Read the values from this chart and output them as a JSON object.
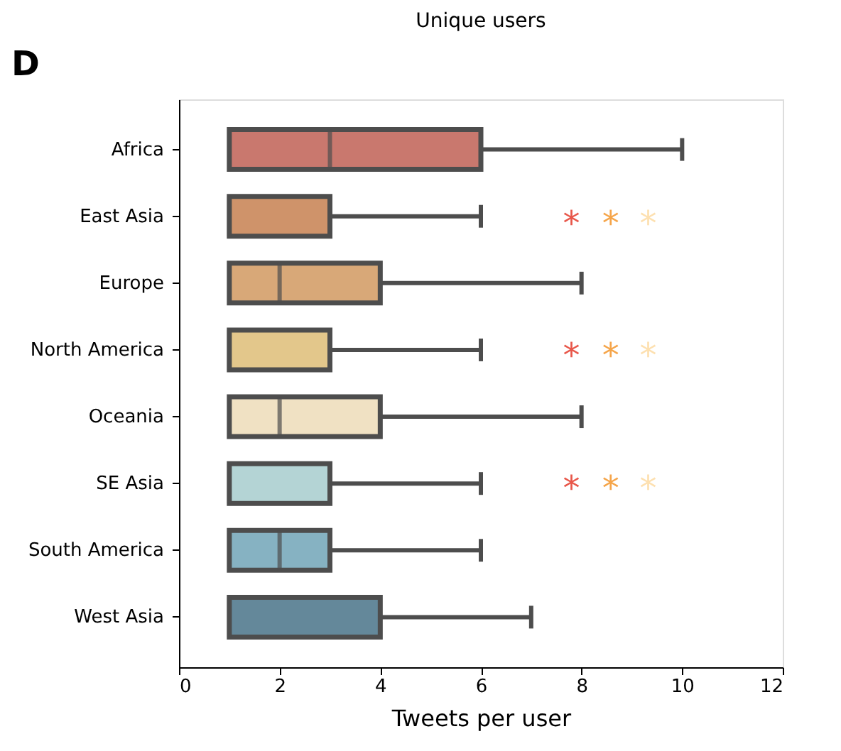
{
  "chart_data": {
    "type": "box",
    "orientation": "horizontal",
    "title": "Unique users",
    "xlabel": "Tweets per user",
    "categories": [
      "Africa",
      "East Asia",
      "Europe",
      "North America",
      "Oceania",
      "SE Asia",
      "South America",
      "West Asia"
    ],
    "colors": [
      "#c9786e",
      "#cf936a",
      "#d8a878",
      "#e3c78b",
      "#f0e1c3",
      "#b4d4d5",
      "#86b2c2",
      "#64889a"
    ],
    "boxes": [
      {
        "low": 1,
        "q1": 1,
        "median": 3,
        "q3": 6,
        "high": 10
      },
      {
        "low": 1,
        "q1": 1,
        "median": 1,
        "q3": 3,
        "high": 6
      },
      {
        "low": 1,
        "q1": 1,
        "median": 2,
        "q3": 4,
        "high": 8
      },
      {
        "low": 1,
        "q1": 1,
        "median": 1,
        "q3": 3,
        "high": 6
      },
      {
        "low": 1,
        "q1": 1,
        "median": 2,
        "q3": 4,
        "high": 8
      },
      {
        "low": 1,
        "q1": 1,
        "median": 1,
        "q3": 3,
        "high": 6
      },
      {
        "low": 1,
        "q1": 1,
        "median": 2,
        "q3": 3,
        "high": 6
      },
      {
        "low": 1,
        "q1": 1,
        "median": 1,
        "q3": 4,
        "high": 7
      }
    ],
    "xlim": [
      0,
      12
    ],
    "xticks": [
      0,
      2,
      4,
      6,
      8,
      10,
      12
    ],
    "grid": false,
    "annotations": [
      "D",
      "*",
      "*",
      "*",
      "*",
      "*",
      "*",
      "*",
      "*",
      "*"
    ]
  }
}
